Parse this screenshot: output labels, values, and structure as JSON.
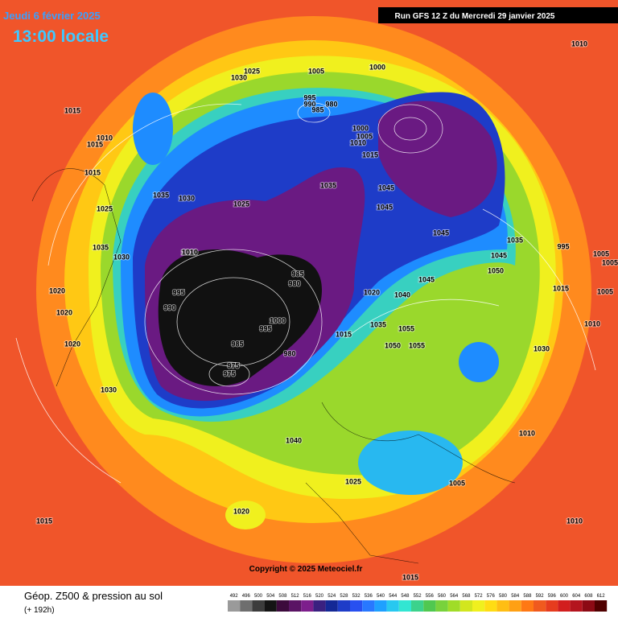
{
  "header": {
    "date": "Jeudi 6 février 2025",
    "time": "13:00 locale",
    "run": "Run GFS 12 Z du Mercredi 29 janvier 2025"
  },
  "footer": {
    "title": "Géop. Z500 & pression au sol",
    "lead": "(+ 192h)",
    "copyright": "Copyright © 2025 Meteociel.fr"
  },
  "legend": {
    "values": [
      492,
      496,
      500,
      504,
      508,
      512,
      516,
      520,
      524,
      528,
      532,
      536,
      540,
      544,
      548,
      552,
      556,
      560,
      564,
      568,
      572,
      576,
      580,
      584,
      588,
      592,
      596,
      600,
      604,
      608,
      612
    ],
    "colors": [
      "#9a9a9a",
      "#6e6e6e",
      "#3c3c3c",
      "#141414",
      "#3c0a3c",
      "#5a1464",
      "#7d1e8c",
      "#3a2080",
      "#142896",
      "#1e3cc8",
      "#2850f0",
      "#2878ff",
      "#1ea0ff",
      "#28c8f0",
      "#32e6d2",
      "#3cd28c",
      "#50c850",
      "#78d23c",
      "#a0dc28",
      "#d2e61e",
      "#f0f01e",
      "#ffdc14",
      "#ffbe14",
      "#ffa014",
      "#ff7814",
      "#f05a1e",
      "#e63c1e",
      "#d21e1e",
      "#b4141e",
      "#8c0a14",
      "#500000"
    ]
  },
  "isobars": [
    1015,
    1030,
    1025,
    1005,
    1000,
    995,
    990,
    985,
    980,
    1000,
    1005,
    1010,
    1015,
    1015,
    1010,
    1015,
    1035,
    1030,
    1025,
    1035,
    1045,
    1045,
    1045,
    1025,
    1010,
    1030,
    1035,
    1020,
    1020,
    1020,
    995,
    990,
    985,
    980,
    975,
    1000,
    995,
    985,
    980,
    975,
    1015,
    1020,
    1040,
    1035,
    1055,
    1050,
    1055,
    1045,
    1050,
    1035,
    1045,
    1015,
    1030,
    1040,
    1025,
    1020,
    1030,
    1010,
    1010,
    1005,
    1010,
    1005,
    1015,
    1015,
    1010,
    1005,
    995,
    1010,
    1005
  ]
}
